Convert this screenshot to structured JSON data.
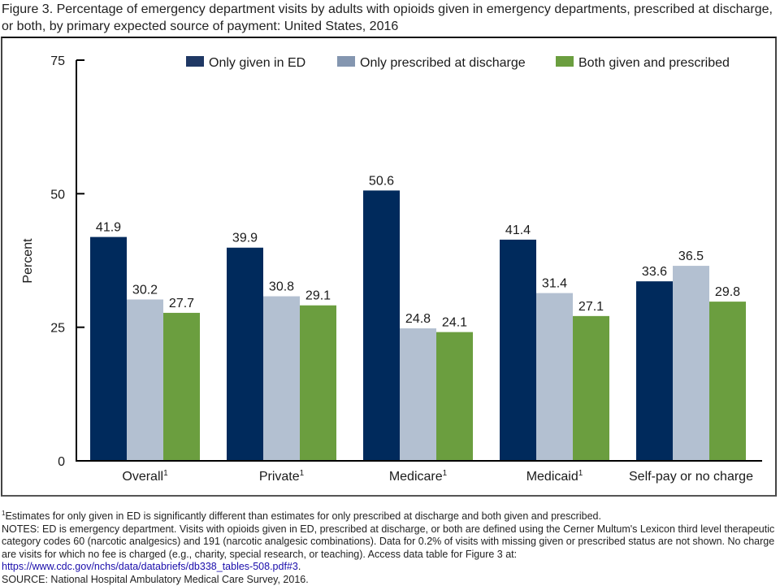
{
  "title": "Figure 3. Percentage of emergency department visits by adults with opioids given in emergency departments, prescribed at discharge, or both, by primary expected source of payment: United States, 2016",
  "chart_data": {
    "type": "bar",
    "title": "Figure 3. Percentage of emergency department visits by adults with opioids given in emergency departments, prescribed at discharge, or both, by primary expected source of payment: United States, 2016",
    "xlabel": "",
    "ylabel": "Percent",
    "ylim": [
      0,
      75
    ],
    "yticks": [
      0,
      25,
      50,
      75
    ],
    "grid": false,
    "legend_position": "top-right",
    "categories": [
      "Overall",
      "Private",
      "Medicare",
      "Medicaid",
      "Self-pay or no charge"
    ],
    "category_superscripts": [
      "1",
      "1",
      "1",
      "1",
      ""
    ],
    "series": [
      {
        "name": "Only given in ED",
        "color": "#002a5c",
        "values": [
          41.9,
          39.9,
          50.6,
          41.4,
          33.6
        ]
      },
      {
        "name": "Only prescribed at discharge",
        "color": "#b3c0d1",
        "values": [
          30.2,
          30.8,
          24.8,
          31.4,
          36.5
        ]
      },
      {
        "name": "Both given and prescribed",
        "color": "#6b9e3f",
        "values": [
          27.7,
          29.1,
          24.1,
          27.1,
          29.8
        ]
      }
    ],
    "legend_swatch_colors": [
      "#1f3864",
      "#8496b0",
      "#6b9e3f"
    ]
  },
  "footnotes": {
    "footnote_1_marker": "1",
    "footnote_1": "Estimates for only given in ED is significantly different than estimates for only prescribed at discharge and both given and prescribed.",
    "notes": "NOTES: ED is emergency department. Visits with opioids given in ED, prescribed at discharge, or both are defined using the Cerner Multum's Lexicon third level therapeutic category codes 60 (narcotic analgesics) and 191 (narcotic analgesic combinations). Data for 0.2% of visits with missing given or prescribed status are not shown. No charge are visits for which no fee is charged (e.g., charity, special research, or teaching). Access data table for Figure 3 at:",
    "link": "https://www.cdc.gov/nchs/data/databriefs/db338_tables-508.pdf#3",
    "link_suffix": ".",
    "source": "SOURCE: National Hospital Ambulatory Medical Care Survey, 2016."
  }
}
